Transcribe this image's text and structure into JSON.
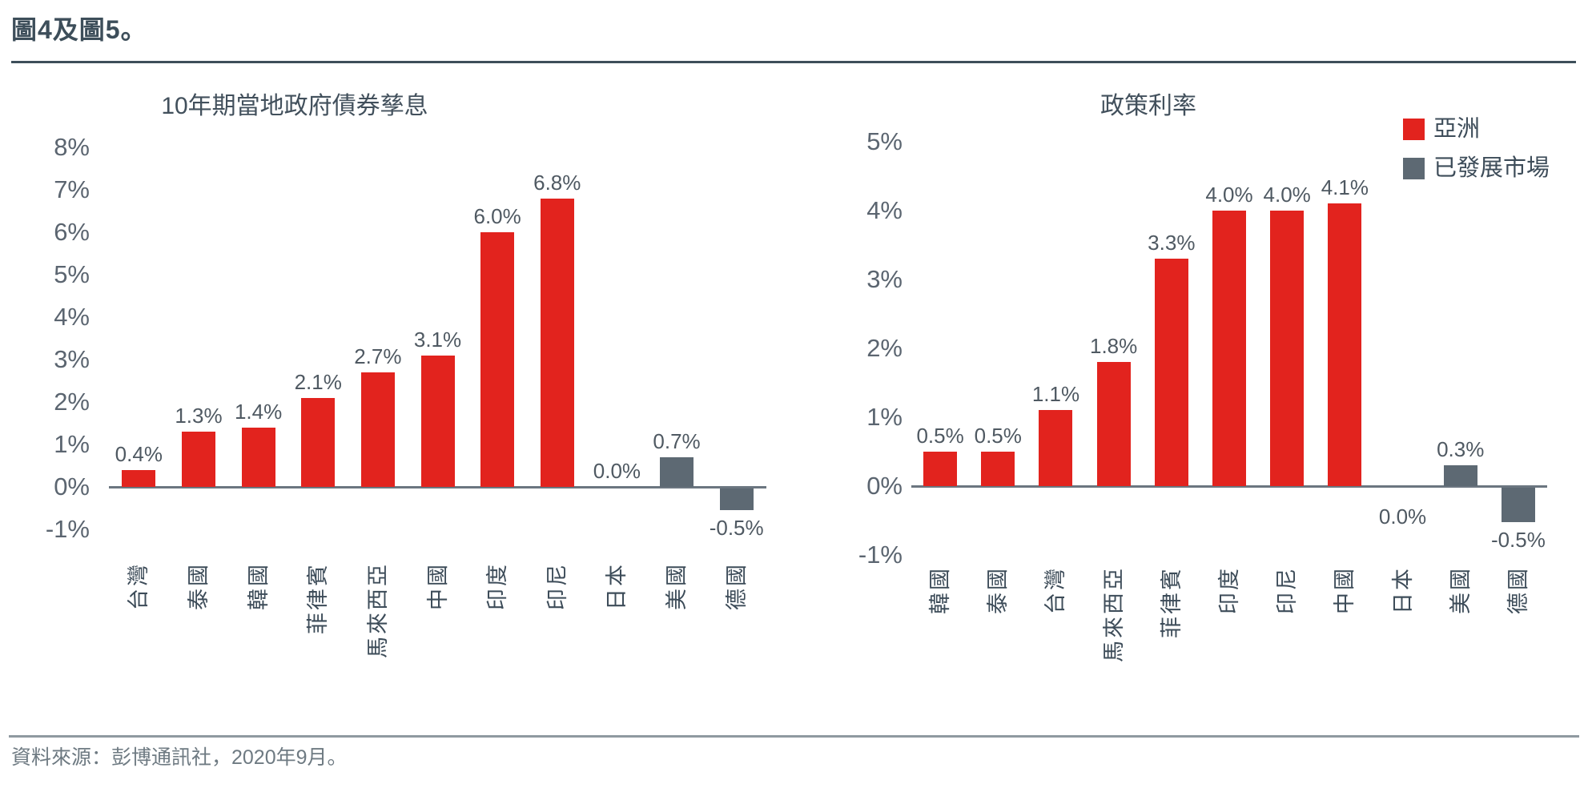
{
  "page": {
    "title": "圖4及圖5。",
    "source": "資料來源：彭博通訊社，2020年9月。"
  },
  "colors": {
    "asia": "#e2231e",
    "developed": "#5d6973",
    "axis": "#6b7680"
  },
  "legend": {
    "position": "top-right",
    "items": [
      {
        "label": "亞洲",
        "color": "#e2231e"
      },
      {
        "label": "已發展市場",
        "color": "#5d6973"
      }
    ]
  },
  "chart_data": [
    {
      "type": "bar",
      "title": "10年期當地政府債券孳息",
      "xlabel": "",
      "ylabel": "",
      "ylim": [
        -1,
        8
      ],
      "grid": false,
      "yticks": [
        "8%",
        "7%",
        "6%",
        "5%",
        "4%",
        "3%",
        "2%",
        "1%",
        "0%",
        "-1%"
      ],
      "series": [
        {
          "category": "台灣",
          "value": 0.4,
          "label": "0.4%",
          "group": "asia"
        },
        {
          "category": "泰國",
          "value": 1.3,
          "label": "1.3%",
          "group": "asia"
        },
        {
          "category": "韓國",
          "value": 1.4,
          "label": "1.4%",
          "group": "asia"
        },
        {
          "category": "菲律賓",
          "value": 2.1,
          "label": "2.1%",
          "group": "asia"
        },
        {
          "category": "馬來西亞",
          "value": 2.7,
          "label": "2.7%",
          "group": "asia"
        },
        {
          "category": "中國",
          "value": 3.1,
          "label": "3.1%",
          "group": "asia"
        },
        {
          "category": "印度",
          "value": 6.0,
          "label": "6.0%",
          "group": "asia"
        },
        {
          "category": "印尼",
          "value": 6.8,
          "label": "6.8%",
          "group": "asia"
        },
        {
          "category": "日本",
          "value": 0.0,
          "label": "0.0%",
          "group": "developed",
          "label_side": "above"
        },
        {
          "category": "美國",
          "value": 0.7,
          "label": "0.7%",
          "group": "developed"
        },
        {
          "category": "德國",
          "value": -0.5,
          "label": "-0.5%",
          "group": "developed"
        }
      ]
    },
    {
      "type": "bar",
      "title": "政策利率",
      "xlabel": "",
      "ylabel": "",
      "ylim": [
        -1,
        5
      ],
      "grid": false,
      "yticks": [
        "5%",
        "4%",
        "3%",
        "2%",
        "1%",
        "0%",
        "-1%"
      ],
      "series": [
        {
          "category": "韓國",
          "value": 0.5,
          "label": "0.5%",
          "group": "asia"
        },
        {
          "category": "泰國",
          "value": 0.5,
          "label": "0.5%",
          "group": "asia"
        },
        {
          "category": "台灣",
          "value": 1.1,
          "label": "1.1%",
          "group": "asia"
        },
        {
          "category": "馬來西亞",
          "value": 1.8,
          "label": "1.8%",
          "group": "asia"
        },
        {
          "category": "菲律賓",
          "value": 3.3,
          "label": "3.3%",
          "group": "asia"
        },
        {
          "category": "印度",
          "value": 4.0,
          "label": "4.0%",
          "group": "asia"
        },
        {
          "category": "印尼",
          "value": 4.0,
          "label": "4.0%",
          "group": "asia"
        },
        {
          "category": "中國",
          "value": 4.1,
          "label": "4.1%",
          "group": "asia"
        },
        {
          "category": "日本",
          "value": 0.0,
          "label": "0.0%",
          "group": "developed",
          "label_side": "below"
        },
        {
          "category": "美國",
          "value": 0.3,
          "label": "0.3%",
          "group": "developed"
        },
        {
          "category": "德國",
          "value": -0.5,
          "label": "-0.5%",
          "group": "developed"
        }
      ]
    }
  ]
}
